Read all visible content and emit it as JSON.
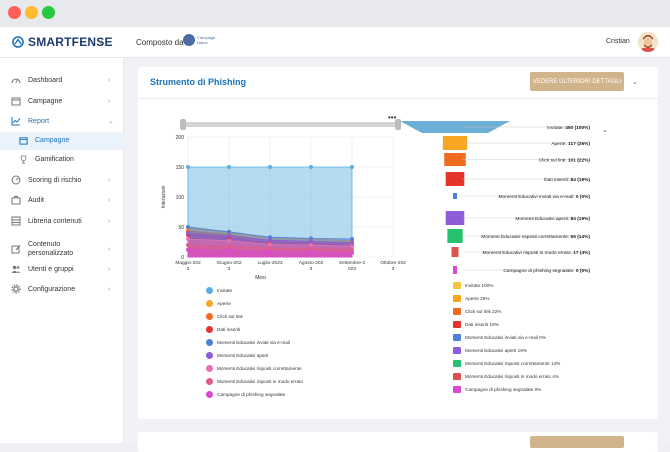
{
  "app": {
    "brand": "SMARTFENSE",
    "composed_by": "Composto da",
    "partner_name": "Campaign Name",
    "user_name": "Cristian"
  },
  "sidebar": {
    "items": [
      {
        "label": "Dashboard",
        "icon": "speedometer-icon"
      },
      {
        "label": "Campagne",
        "icon": "calendar-icon"
      },
      {
        "label": "Report",
        "icon": "chart-line-icon",
        "active": true
      },
      {
        "label": "Scoring di rischio",
        "icon": "gauge-icon"
      },
      {
        "label": "Audit",
        "icon": "briefcase-icon"
      },
      {
        "label": "Libreria contenuti",
        "icon": "library-icon"
      },
      {
        "label": "Contenuto personalizzato",
        "icon": "edit-icon"
      },
      {
        "label": "Utenti e gruppi",
        "icon": "users-icon"
      },
      {
        "label": "Configurazione",
        "icon": "gear-icon"
      }
    ],
    "report_sub": [
      {
        "label": "Campagne",
        "icon": "calendar-icon",
        "active": true
      },
      {
        "label": "Gamification",
        "icon": "trophy-icon"
      }
    ]
  },
  "card": {
    "title": "Strumento di Phishing",
    "button": "VEDERE ULTERIORI DETTAGLI",
    "second_button": ""
  },
  "colors": {
    "accent": "#1a73b8",
    "button": "#d2b48c",
    "active_bg": "#eaf2fb"
  },
  "chart_data": [
    {
      "type": "area",
      "xlabel": "Mesi",
      "ylabel": "Interazioni",
      "ylim": [
        0,
        200
      ],
      "yticks": [
        0,
        50,
        100,
        150,
        200
      ],
      "categories": [
        "Maggio-2023",
        "Giugno-2023",
        "Luglio-2023",
        "Agosto-2023",
        "Settembre-2023",
        "Ottobre-2023"
      ],
      "category_lines": [
        [
          "Maggio-202",
          "3"
        ],
        [
          "Giugno-202",
          "3"
        ],
        [
          "Luglio-2023",
          ""
        ],
        [
          "Agosto-202",
          "3"
        ],
        [
          "Settembre-2",
          "023"
        ],
        [
          "Ottobre-202",
          "3"
        ]
      ],
      "series": [
        {
          "name": "Invitate",
          "color": "#5ab0e0",
          "values": [
            150,
            150,
            150,
            150,
            150,
            null
          ]
        },
        {
          "name": "Aperte",
          "color": "#f5a623",
          "values": [
            48,
            42,
            31,
            30,
            27,
            null
          ]
        },
        {
          "name": "Click sul link",
          "color": "#ef6c1f",
          "values": [
            43,
            37,
            27,
            26,
            22,
            null
          ]
        },
        {
          "name": "Dati inseriti",
          "color": "#e5322d",
          "values": [
            37,
            32,
            24,
            23,
            19,
            null
          ]
        },
        {
          "name": "Momenti Educativi inviati via e-mail",
          "color": "#4f7fd6",
          "values": [
            50,
            42,
            33,
            31,
            30,
            null
          ]
        },
        {
          "name": "Momenti Educativi aperti",
          "color": "#8e5bd9",
          "values": [
            40,
            35,
            28,
            26,
            24,
            null
          ]
        },
        {
          "name": "Momenti Educativi risposti correttamente",
          "color": "#e86fb2",
          "values": [
            30,
            27,
            21,
            20,
            18,
            null
          ]
        },
        {
          "name": "Momenti Educativi risposti in modo errato",
          "color": "#e05a8a",
          "values": [
            20,
            18,
            15,
            14,
            12,
            null
          ]
        },
        {
          "name": "Campagne di phishing segnalate",
          "color": "#d94ad1",
          "values": [
            12,
            11,
            9,
            8,
            7,
            null
          ]
        }
      ]
    },
    {
      "type": "funnel",
      "stages": [
        {
          "label": "Invitate",
          "value": 450,
          "percent": "100%",
          "color": "#6baed6"
        },
        {
          "label": "Aperte",
          "value": 117,
          "percent": "26%",
          "color": "#f5a623"
        },
        {
          "label": "Click sul link",
          "value": 101,
          "percent": "22%",
          "color": "#ef6c1f"
        },
        {
          "label": "Dati inseriti",
          "value": 84,
          "percent": "19%",
          "color": "#e5322d"
        },
        {
          "label": "Momenti Educativi inviati via e-mail",
          "value": 0,
          "percent": "0%",
          "color": "#4f7fd6"
        },
        {
          "label": "Momenti Educativi aperti",
          "value": 84,
          "percent": "19%",
          "color": "#8e5bd9"
        },
        {
          "label": "Momenti Educativi risposti correttamente",
          "value": 65,
          "percent": "14%",
          "color": "#25c16f"
        },
        {
          "label": "Momenti Educativi risposti in modo errato",
          "value": 17,
          "percent": "4%",
          "color": "#d9534f"
        },
        {
          "label": "Campagne di phishing segnalate",
          "value": 0,
          "percent": "0%",
          "color": "#d94ad1"
        }
      ],
      "legend": [
        {
          "label": "Invitate 100%",
          "color": "#f5c542"
        },
        {
          "label": "Aperte 26%",
          "color": "#f5a623"
        },
        {
          "label": "Click sul link 22%",
          "color": "#ef6c1f"
        },
        {
          "label": "Dati inseriti 19%",
          "color": "#e5322d"
        },
        {
          "label": "Momenti Educativi inviati via e-mail 0%",
          "color": "#4f7fd6"
        },
        {
          "label": "Momenti Educativi aperti 19%",
          "color": "#8e5bd9"
        },
        {
          "label": "Momenti Educativi risposti correttamente 14%",
          "color": "#25c16f"
        },
        {
          "label": "Momenti Educativi risposti in modo errato 4%",
          "color": "#d9534f"
        },
        {
          "label": "Campagne di phishing segnalate 0%",
          "color": "#d94ad1"
        }
      ]
    }
  ]
}
